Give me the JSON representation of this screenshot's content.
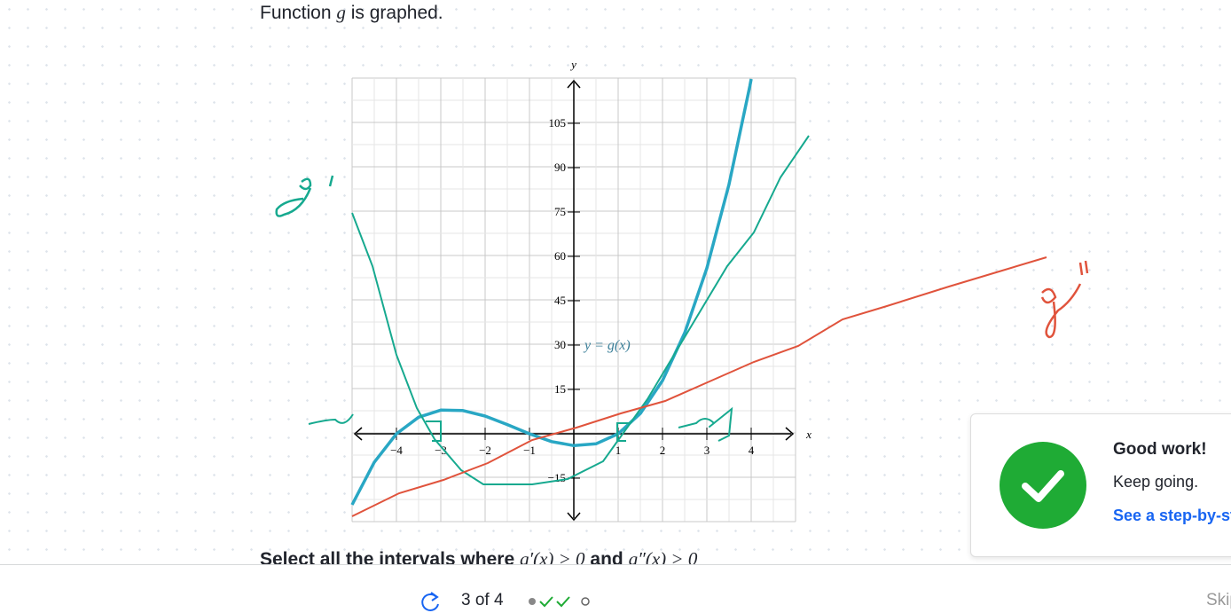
{
  "header": {
    "text_before": "Function",
    "variable": "g",
    "text_after": "is graphed."
  },
  "graph": {
    "x_axis_label": "x",
    "y_axis_label": "y",
    "curve_label": "y = g(x)",
    "x_ticks": [
      {
        "value": -4,
        "label": "−4"
      },
      {
        "value": -3,
        "label": "−3"
      },
      {
        "value": -2,
        "label": "−2"
      },
      {
        "value": -1,
        "label": "−1"
      },
      1,
      2,
      3,
      4
    ],
    "y_ticks": [
      105,
      90,
      75,
      60,
      45,
      30,
      15,
      {
        "value": -15,
        "label": "−15"
      }
    ]
  },
  "question": {
    "text_before": "Select all the intervals where",
    "cond1": "g′(x) > 0",
    "joiner": "and",
    "cond2": "g″(x) > 0"
  },
  "toast": {
    "title": "Good work!",
    "message": "Keep going.",
    "link": "See a step-by-step solution"
  },
  "footer": {
    "progress": "3 of 4",
    "skip": "Skip"
  }
}
